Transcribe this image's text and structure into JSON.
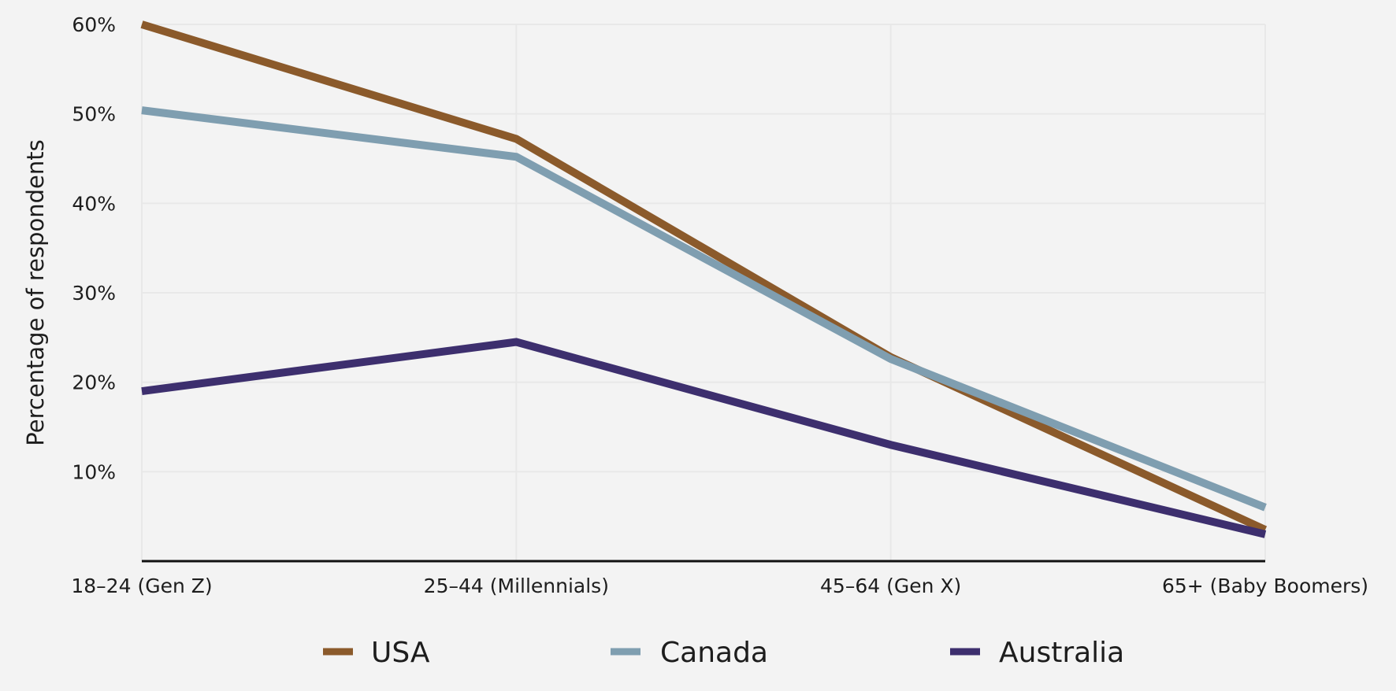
{
  "chart_data": {
    "type": "line",
    "categories": [
      "18–24 (Gen Z)",
      "25–44 (Millennials)",
      "45–64 (Gen X)",
      "65+ (Baby Boomers)"
    ],
    "series": [
      {
        "name": "USA",
        "color": "#8b5a2b",
        "values": [
          60,
          47.2,
          22.8,
          3.5
        ]
      },
      {
        "name": "Canada",
        "color": "#7f9eb0",
        "values": [
          50.4,
          45.2,
          22.6,
          6.0
        ]
      },
      {
        "name": "Australia",
        "color": "#3d2f6e",
        "values": [
          19.0,
          24.5,
          13.0,
          3.0
        ]
      }
    ],
    "ylabel": "Percentage of respondents",
    "ylim": [
      0,
      60
    ],
    "yticks": [
      "10%",
      "20%",
      "30%",
      "40%",
      "50%",
      "60%"
    ],
    "yticks_values": [
      10,
      20,
      30,
      40,
      50,
      60
    ],
    "grid": true,
    "legend_position": "bottom"
  }
}
